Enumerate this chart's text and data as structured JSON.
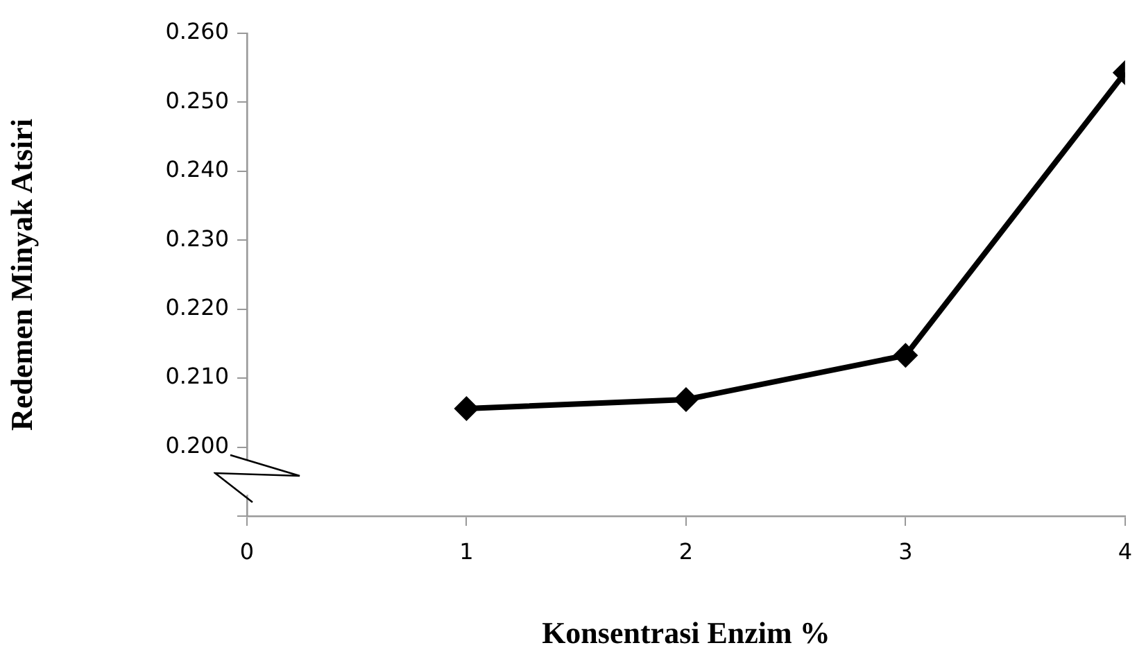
{
  "chart_data": {
    "type": "line",
    "xlabel": "Konsentrasi Enzim %",
    "ylabel": "Redemen Minyak Atsiri",
    "x": [
      1,
      2,
      3,
      4
    ],
    "series": [
      {
        "color": "#000000",
        "values": [
          0.2056,
          0.2069,
          0.2133,
          0.2543
        ]
      }
    ],
    "xlim": [
      0,
      4
    ],
    "xticks": [
      0,
      1,
      2,
      3,
      4
    ],
    "ylim": [
      0.19,
      0.26
    ],
    "yticks": [
      {
        "value": 0.19,
        "label": null
      },
      {
        "value": 0.2,
        "label": "0.200"
      },
      {
        "value": 0.21,
        "label": "0.210"
      },
      {
        "value": 0.22,
        "label": "0.220"
      },
      {
        "value": 0.23,
        "label": "0.230"
      },
      {
        "value": 0.24,
        "label": "0.240"
      },
      {
        "value": 0.25,
        "label": "0.250"
      },
      {
        "value": 0.26,
        "label": "0.260"
      }
    ],
    "grid": false,
    "legend": false,
    "marker": "diamond",
    "line_style": "solid"
  }
}
